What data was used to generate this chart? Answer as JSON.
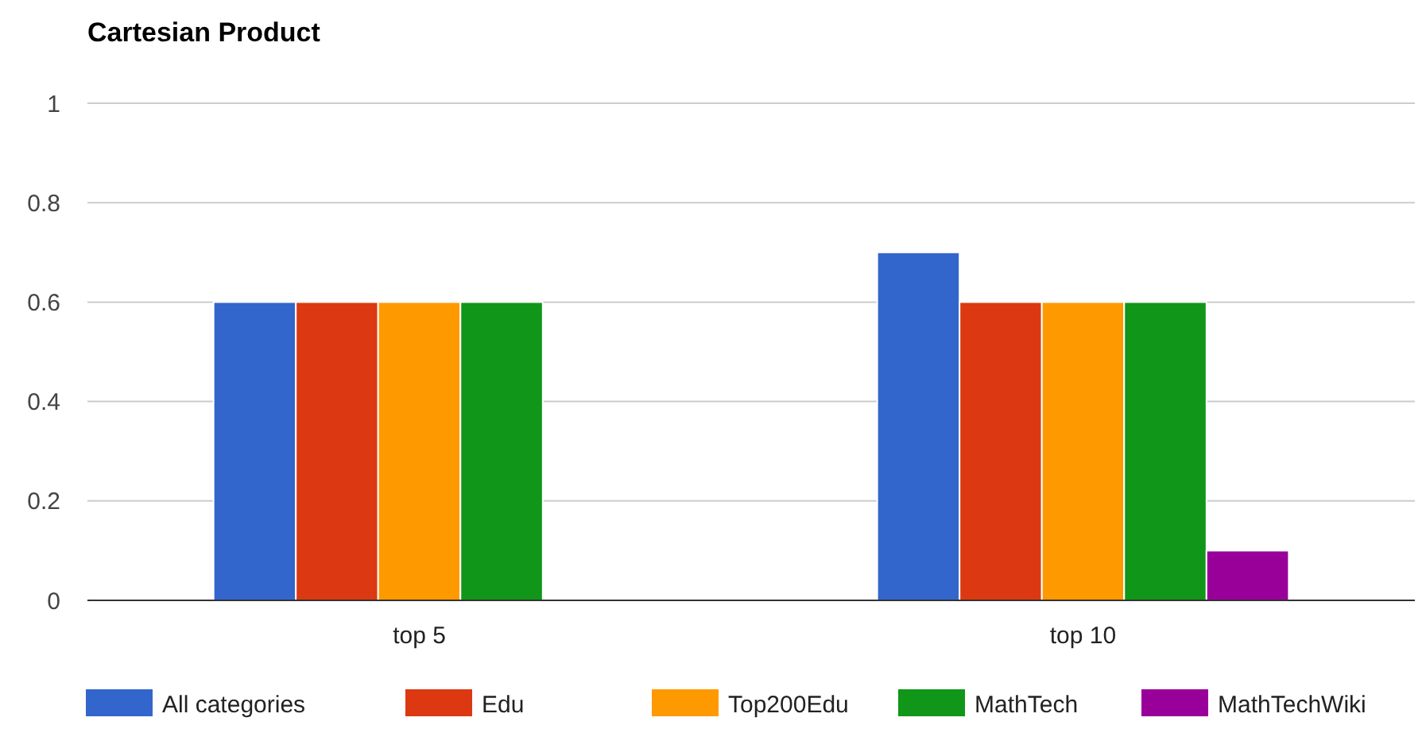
{
  "chart_data": {
    "type": "bar",
    "title": "Cartesian Product",
    "categories": [
      "top 5",
      "top 10"
    ],
    "series": [
      {
        "name": "All categories",
        "color": "#3366cc",
        "values": [
          0.6,
          0.7
        ]
      },
      {
        "name": "Edu",
        "color": "#dc3912",
        "values": [
          0.6,
          0.6
        ]
      },
      {
        "name": "Top200Edu",
        "color": "#ff9900",
        "values": [
          0.6,
          0.6
        ]
      },
      {
        "name": "MathTech",
        "color": "#109618",
        "values": [
          0.6,
          0.6
        ]
      },
      {
        "name": "MathTechWiki",
        "color": "#990099",
        "values": [
          0,
          0.1
        ]
      }
    ],
    "ylim": [
      0,
      1
    ],
    "yticks": [
      0,
      0.2,
      0.4,
      0.6,
      0.8,
      1
    ],
    "grid": "y",
    "legend": "bottom"
  }
}
